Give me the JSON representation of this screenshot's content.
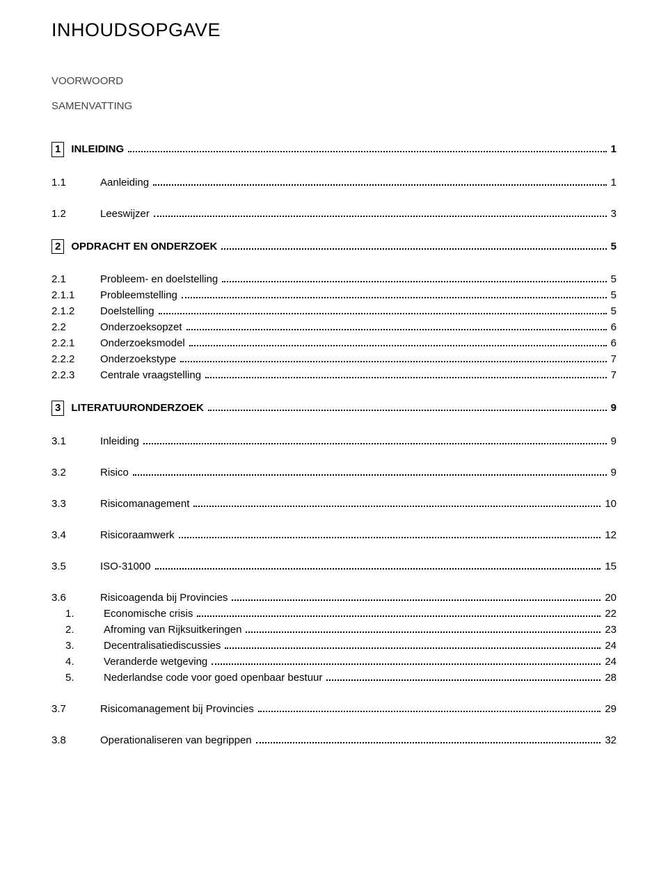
{
  "title": "INHOUDSOPGAVE",
  "top_links": [
    "VOORWOORD",
    "SAMENVATTING"
  ],
  "toc": [
    {
      "type": "chapter",
      "num": "1",
      "label": "INLEIDING",
      "page": "1",
      "boxed": true
    },
    {
      "type": "sub",
      "num": "1.1",
      "label": "Aanleiding",
      "page": "1"
    },
    {
      "type": "sub",
      "num": "1.2",
      "label": "Leeswijzer",
      "page": "3"
    },
    {
      "type": "chapter",
      "num": "2",
      "label": "OPDRACHT EN ONDERZOEK",
      "page": "5",
      "boxed": true
    },
    {
      "type": "sub",
      "num": "2.1",
      "label": "Probleem- en doelstelling",
      "page": "5"
    },
    {
      "type": "sub2",
      "num": "2.1.1",
      "label": "Probleemstelling",
      "page": "5"
    },
    {
      "type": "sub2",
      "num": "2.1.2",
      "label": "Doelstelling",
      "page": "5"
    },
    {
      "type": "sub",
      "num": "2.2",
      "label": "Onderzoeksopzet",
      "page": "6"
    },
    {
      "type": "sub2",
      "num": "2.2.1",
      "label": "Onderzoeksmodel",
      "page": "6"
    },
    {
      "type": "sub2",
      "num": "2.2.2",
      "label": "Onderzoekstype",
      "page": "7"
    },
    {
      "type": "sub2",
      "num": "2.2.3",
      "label": "Centrale vraagstelling",
      "page": "7"
    },
    {
      "type": "chapter",
      "num": "3",
      "label": "LITERATUURONDERZOEK",
      "page": "9",
      "boxed": true
    },
    {
      "type": "sub",
      "num": "3.1",
      "label": "Inleiding",
      "page": "9"
    },
    {
      "type": "sub",
      "num": "3.2",
      "label": "Risico",
      "page": "9"
    },
    {
      "type": "sub",
      "num": "3.3",
      "label": "Risicomanagement",
      "page": "10"
    },
    {
      "type": "sub",
      "num": "3.4",
      "label": "Risicoraamwerk",
      "page": "12"
    },
    {
      "type": "sub",
      "num": "3.5",
      "label": "ISO-31000",
      "page": "15"
    },
    {
      "type": "sub",
      "num": "3.6",
      "label": "Risicoagenda bij Provincies",
      "page": "20"
    },
    {
      "type": "list",
      "num": "1.",
      "label": "Economische crisis",
      "page": "22"
    },
    {
      "type": "list",
      "num": "2.",
      "label": "Afroming van Rijksuitkeringen",
      "page": "23"
    },
    {
      "type": "list",
      "num": "3.",
      "label": "Decentralisatiediscussies",
      "page": "24"
    },
    {
      "type": "list",
      "num": "4.",
      "label": "Veranderde wetgeving",
      "page": "24"
    },
    {
      "type": "list",
      "num": "5.",
      "label": "Nederlandse code voor goed openbaar bestuur",
      "page": "28"
    },
    {
      "type": "sub",
      "num": "3.7",
      "label": "Risicomanagement bij Provincies",
      "page": "29"
    },
    {
      "type": "sub",
      "num": "3.8",
      "label": "Operationaliseren van begrippen",
      "page": "32"
    }
  ]
}
